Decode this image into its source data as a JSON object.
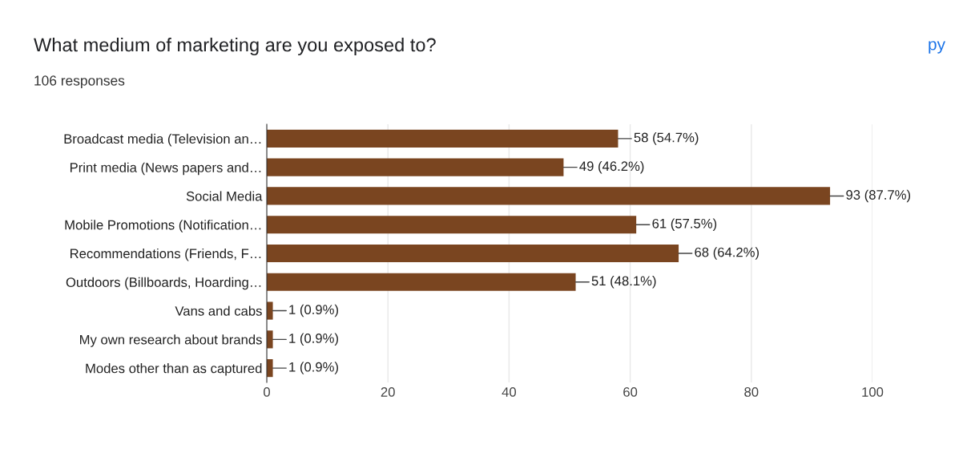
{
  "chart_data": {
    "type": "bar",
    "orientation": "horizontal",
    "title": "What medium of marketing are you exposed to?",
    "subtitle": "106 responses",
    "categories": [
      "Broadcast media (Television an…",
      "Print media (News papers and…",
      "Social Media",
      "Mobile Promotions (Notification…",
      "Recommendations (Friends, F…",
      "Outdoors (Billboards, Hoarding…",
      "Vans and cabs",
      "My own research about brands",
      "Modes other than as captured"
    ],
    "values": [
      58,
      49,
      93,
      61,
      68,
      51,
      1,
      1,
      1
    ],
    "value_labels": [
      "58 (54.7%)",
      "49 (46.2%)",
      "93 (87.7%)",
      "61 (57.5%)",
      "68 (64.2%)",
      "51 (48.1%)",
      "1 (0.9%)",
      "1 (0.9%)",
      "1 (0.9%)"
    ],
    "color": "#7a4520",
    "xlim": [
      0,
      100
    ],
    "xticks": [
      0,
      20,
      40,
      60,
      80,
      100
    ],
    "grid": "x",
    "annotations": [
      "py"
    ]
  }
}
